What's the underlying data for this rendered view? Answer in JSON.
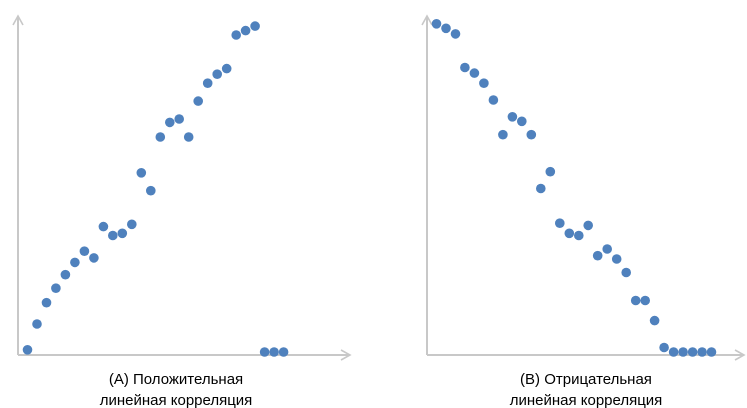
{
  "colors": {
    "background": "#ffffff",
    "axis": "#c8c8c8",
    "points": "#4f81bd",
    "text": "#000000"
  },
  "chart_data": [
    {
      "type": "scatter",
      "title": "",
      "caption": [
        "(A) Положительная",
        "линейная корреляция"
      ],
      "xlabel": "",
      "ylabel": "",
      "grid": false,
      "axis_ticks": false,
      "xlim": [
        0,
        33
      ],
      "ylim": [
        0,
        300
      ],
      "x": [
        1,
        2,
        3,
        4,
        5,
        6,
        7,
        8,
        9,
        10,
        11,
        12,
        13,
        14,
        15,
        16,
        17,
        18,
        19,
        20,
        21,
        22,
        23,
        24,
        25,
        26,
        27,
        28
      ],
      "y": [
        2,
        25,
        44,
        57,
        69,
        80,
        90,
        84,
        112,
        104,
        106,
        114,
        160,
        144,
        192,
        205,
        208,
        192,
        224,
        240,
        248,
        253,
        283,
        287,
        291,
        0,
        0,
        0
      ]
    },
    {
      "type": "scatter",
      "title": "",
      "caption": [
        "(B) Отрицательная",
        "линейная корреляция"
      ],
      "xlabel": "",
      "ylabel": "",
      "grid": false,
      "axis_ticks": false,
      "xlim": [
        0,
        33
      ],
      "ylim": [
        0,
        300
      ],
      "x": [
        1,
        2,
        3,
        4,
        5,
        6,
        7,
        8,
        9,
        10,
        11,
        12,
        13,
        14,
        15,
        16,
        17,
        18,
        19,
        20,
        21,
        22,
        23,
        24,
        25,
        26,
        27,
        28,
        29,
        30
      ],
      "y": [
        293,
        289,
        284,
        254,
        249,
        240,
        225,
        194,
        210,
        206,
        194,
        146,
        161,
        115,
        106,
        104,
        113,
        86,
        92,
        83,
        71,
        46,
        46,
        28,
        4,
        0,
        0,
        0,
        0,
        0
      ]
    }
  ]
}
